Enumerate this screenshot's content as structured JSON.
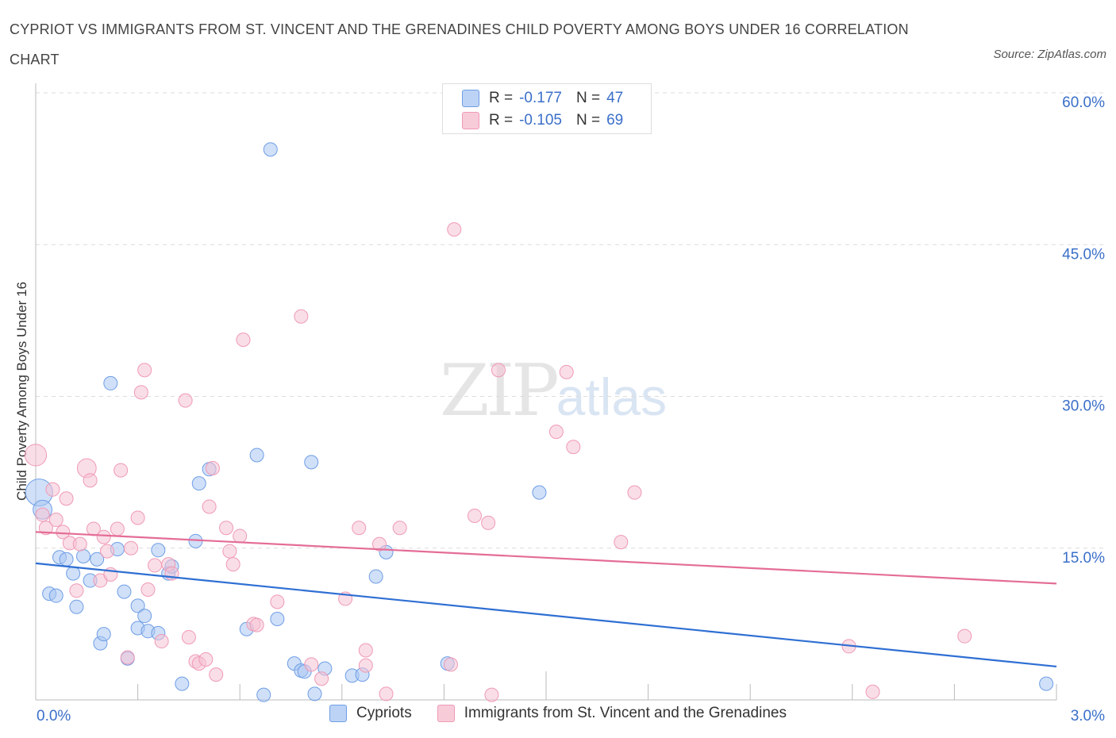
{
  "title": "CYPRIOT VS IMMIGRANTS FROM ST. VINCENT AND THE GRENADINES CHILD POVERTY AMONG BOYS UNDER 16 CORRELATION CHART",
  "source": "Source: ZipAtlas.com",
  "watermark": {
    "zip": "ZIP",
    "atlas": "atlas"
  },
  "legend_top": [
    {
      "r_label": "R =",
      "r_value": "-0.177",
      "n_label": "N =",
      "n_value": "47"
    },
    {
      "r_label": "R =",
      "r_value": "-0.105",
      "n_label": "N =",
      "n_value": "69"
    }
  ],
  "colors": {
    "series1": "#6f9ee6",
    "series1_fill": "#a9c6f2",
    "series2": "#ef9ab5",
    "series2_fill": "#f6c3d3",
    "trend1": "#2f6fd3",
    "trend2": "#e46d97",
    "axis_text": "#3a6fc9"
  },
  "chart_data": {
    "type": "scatter",
    "title": "CYPRIOT VS IMMIGRANTS FROM ST. VINCENT AND THE GRENADINES CHILD POVERTY AMONG BOYS UNDER 16 CORRELATION CHART",
    "xlabel": "",
    "ylabel": "Child Poverty Among Boys Under 16",
    "xlim": [
      0,
      3.0
    ],
    "ylim": [
      0,
      60
    ],
    "x_tick_labels": [
      "0.0%",
      "3.0%"
    ],
    "y_tick_labels": [
      "15.0%",
      "30.0%",
      "45.0%",
      "60.0%"
    ],
    "y_ticks": [
      15,
      30,
      45,
      60
    ],
    "legend_position": "bottom",
    "series": [
      {
        "name": "Cypriots",
        "r": -0.177,
        "n": 47,
        "trend": {
          "x": [
            0,
            3.0
          ],
          "y": [
            13.5,
            3.3
          ]
        },
        "points": [
          {
            "x": 0.01,
            "y": 20.5,
            "s": 2
          },
          {
            "x": 0.02,
            "y": 18.8,
            "s": 1.4
          },
          {
            "x": 0.04,
            "y": 10.5,
            "s": 1
          },
          {
            "x": 0.06,
            "y": 10.3,
            "s": 1
          },
          {
            "x": 0.07,
            "y": 14.1,
            "s": 1
          },
          {
            "x": 0.09,
            "y": 13.9,
            "s": 1
          },
          {
            "x": 0.11,
            "y": 12.5,
            "s": 1
          },
          {
            "x": 0.12,
            "y": 9.2,
            "s": 1
          },
          {
            "x": 0.14,
            "y": 14.2,
            "s": 1
          },
          {
            "x": 0.16,
            "y": 11.8,
            "s": 1
          },
          {
            "x": 0.18,
            "y": 13.9,
            "s": 1
          },
          {
            "x": 0.19,
            "y": 5.6,
            "s": 1
          },
          {
            "x": 0.2,
            "y": 6.5,
            "s": 1
          },
          {
            "x": 0.22,
            "y": 31.3,
            "s": 1
          },
          {
            "x": 0.24,
            "y": 14.9,
            "s": 1
          },
          {
            "x": 0.26,
            "y": 10.7,
            "s": 1
          },
          {
            "x": 0.27,
            "y": 4.1,
            "s": 1
          },
          {
            "x": 0.3,
            "y": 9.3,
            "s": 1
          },
          {
            "x": 0.3,
            "y": 7.1,
            "s": 1
          },
          {
            "x": 0.32,
            "y": 8.3,
            "s": 1
          },
          {
            "x": 0.33,
            "y": 6.8,
            "s": 1
          },
          {
            "x": 0.36,
            "y": 6.6,
            "s": 1
          },
          {
            "x": 0.36,
            "y": 14.8,
            "s": 1
          },
          {
            "x": 0.39,
            "y": 12.5,
            "s": 1
          },
          {
            "x": 0.4,
            "y": 13.2,
            "s": 1
          },
          {
            "x": 0.43,
            "y": 1.6,
            "s": 1
          },
          {
            "x": 0.47,
            "y": 15.7,
            "s": 1
          },
          {
            "x": 0.48,
            "y": 21.4,
            "s": 1
          },
          {
            "x": 0.51,
            "y": 22.8,
            "s": 1
          },
          {
            "x": 0.62,
            "y": 7.0,
            "s": 1
          },
          {
            "x": 0.65,
            "y": 24.2,
            "s": 1
          },
          {
            "x": 0.67,
            "y": 0.5,
            "s": 1
          },
          {
            "x": 0.69,
            "y": 54.4,
            "s": 1
          },
          {
            "x": 0.71,
            "y": 8.0,
            "s": 1
          },
          {
            "x": 0.76,
            "y": 3.6,
            "s": 1
          },
          {
            "x": 0.78,
            "y": 2.9,
            "s": 1
          },
          {
            "x": 0.79,
            "y": 2.8,
            "s": 1
          },
          {
            "x": 0.81,
            "y": 23.5,
            "s": 1
          },
          {
            "x": 0.82,
            "y": 0.6,
            "s": 1
          },
          {
            "x": 0.85,
            "y": 3.1,
            "s": 1
          },
          {
            "x": 0.93,
            "y": 2.4,
            "s": 1
          },
          {
            "x": 0.96,
            "y": 2.5,
            "s": 1
          },
          {
            "x": 1.0,
            "y": 12.2,
            "s": 1
          },
          {
            "x": 1.03,
            "y": 14.6,
            "s": 1
          },
          {
            "x": 1.21,
            "y": 3.6,
            "s": 1
          },
          {
            "x": 1.48,
            "y": 20.5,
            "s": 1
          },
          {
            "x": 2.97,
            "y": 1.6,
            "s": 1
          }
        ]
      },
      {
        "name": "Immigrants from St. Vincent and the Grenadines",
        "r": -0.105,
        "n": 69,
        "trend": {
          "x": [
            0,
            3.0
          ],
          "y": [
            16.6,
            11.5
          ]
        },
        "points": [
          {
            "x": 0.0,
            "y": 24.2,
            "s": 1.6
          },
          {
            "x": 0.02,
            "y": 18.3,
            "s": 1
          },
          {
            "x": 0.03,
            "y": 17.0,
            "s": 1
          },
          {
            "x": 0.05,
            "y": 20.8,
            "s": 1
          },
          {
            "x": 0.06,
            "y": 17.8,
            "s": 1
          },
          {
            "x": 0.08,
            "y": 16.6,
            "s": 1
          },
          {
            "x": 0.09,
            "y": 19.9,
            "s": 1
          },
          {
            "x": 0.1,
            "y": 15.5,
            "s": 1
          },
          {
            "x": 0.12,
            "y": 10.8,
            "s": 1
          },
          {
            "x": 0.13,
            "y": 15.4,
            "s": 1
          },
          {
            "x": 0.15,
            "y": 22.9,
            "s": 1.4
          },
          {
            "x": 0.16,
            "y": 21.7,
            "s": 1
          },
          {
            "x": 0.17,
            "y": 16.9,
            "s": 1
          },
          {
            "x": 0.19,
            "y": 11.8,
            "s": 1
          },
          {
            "x": 0.2,
            "y": 16.1,
            "s": 1
          },
          {
            "x": 0.21,
            "y": 14.7,
            "s": 1
          },
          {
            "x": 0.22,
            "y": 12.4,
            "s": 1
          },
          {
            "x": 0.24,
            "y": 16.9,
            "s": 1
          },
          {
            "x": 0.25,
            "y": 22.7,
            "s": 1
          },
          {
            "x": 0.27,
            "y": 4.2,
            "s": 1
          },
          {
            "x": 0.28,
            "y": 15.0,
            "s": 1
          },
          {
            "x": 0.3,
            "y": 18.0,
            "s": 1
          },
          {
            "x": 0.31,
            "y": 30.4,
            "s": 1
          },
          {
            "x": 0.32,
            "y": 32.6,
            "s": 1
          },
          {
            "x": 0.33,
            "y": 10.9,
            "s": 1
          },
          {
            "x": 0.35,
            "y": 13.3,
            "s": 1
          },
          {
            "x": 0.37,
            "y": 5.8,
            "s": 1
          },
          {
            "x": 0.39,
            "y": 13.4,
            "s": 1
          },
          {
            "x": 0.4,
            "y": 12.5,
            "s": 1
          },
          {
            "x": 0.44,
            "y": 29.6,
            "s": 1
          },
          {
            "x": 0.45,
            "y": 6.2,
            "s": 1
          },
          {
            "x": 0.47,
            "y": 3.8,
            "s": 1
          },
          {
            "x": 0.48,
            "y": 3.6,
            "s": 1
          },
          {
            "x": 0.5,
            "y": 4.0,
            "s": 1
          },
          {
            "x": 0.51,
            "y": 19.1,
            "s": 1
          },
          {
            "x": 0.52,
            "y": 22.9,
            "s": 1
          },
          {
            "x": 0.53,
            "y": 2.5,
            "s": 1
          },
          {
            "x": 0.56,
            "y": 17.0,
            "s": 1
          },
          {
            "x": 0.57,
            "y": 14.7,
            "s": 1
          },
          {
            "x": 0.58,
            "y": 13.4,
            "s": 1
          },
          {
            "x": 0.6,
            "y": 16.2,
            "s": 1
          },
          {
            "x": 0.61,
            "y": 35.6,
            "s": 1
          },
          {
            "x": 0.64,
            "y": 7.5,
            "s": 1
          },
          {
            "x": 0.65,
            "y": 7.4,
            "s": 1
          },
          {
            "x": 0.71,
            "y": 9.7,
            "s": 1
          },
          {
            "x": 0.78,
            "y": 37.9,
            "s": 1
          },
          {
            "x": 0.81,
            "y": 3.5,
            "s": 1
          },
          {
            "x": 0.84,
            "y": 2.1,
            "s": 1
          },
          {
            "x": 0.91,
            "y": 10.0,
            "s": 1
          },
          {
            "x": 0.95,
            "y": 17.0,
            "s": 1
          },
          {
            "x": 0.97,
            "y": 3.4,
            "s": 1
          },
          {
            "x": 0.97,
            "y": 4.9,
            "s": 1
          },
          {
            "x": 1.01,
            "y": 15.4,
            "s": 1
          },
          {
            "x": 1.03,
            "y": 0.6,
            "s": 1
          },
          {
            "x": 1.07,
            "y": 17.0,
            "s": 1
          },
          {
            "x": 1.22,
            "y": 3.5,
            "s": 1
          },
          {
            "x": 1.23,
            "y": 46.5,
            "s": 1
          },
          {
            "x": 1.29,
            "y": 18.2,
            "s": 1
          },
          {
            "x": 1.33,
            "y": 17.5,
            "s": 1
          },
          {
            "x": 1.34,
            "y": 0.5,
            "s": 1
          },
          {
            "x": 1.36,
            "y": 32.6,
            "s": 1
          },
          {
            "x": 1.53,
            "y": 26.5,
            "s": 1
          },
          {
            "x": 1.56,
            "y": 32.4,
            "s": 1
          },
          {
            "x": 1.58,
            "y": 25.0,
            "s": 1
          },
          {
            "x": 1.72,
            "y": 15.6,
            "s": 1
          },
          {
            "x": 1.76,
            "y": 20.5,
            "s": 1
          },
          {
            "x": 2.39,
            "y": 5.3,
            "s": 1
          },
          {
            "x": 2.46,
            "y": 0.8,
            "s": 1
          },
          {
            "x": 2.73,
            "y": 6.3,
            "s": 1
          }
        ]
      }
    ]
  }
}
